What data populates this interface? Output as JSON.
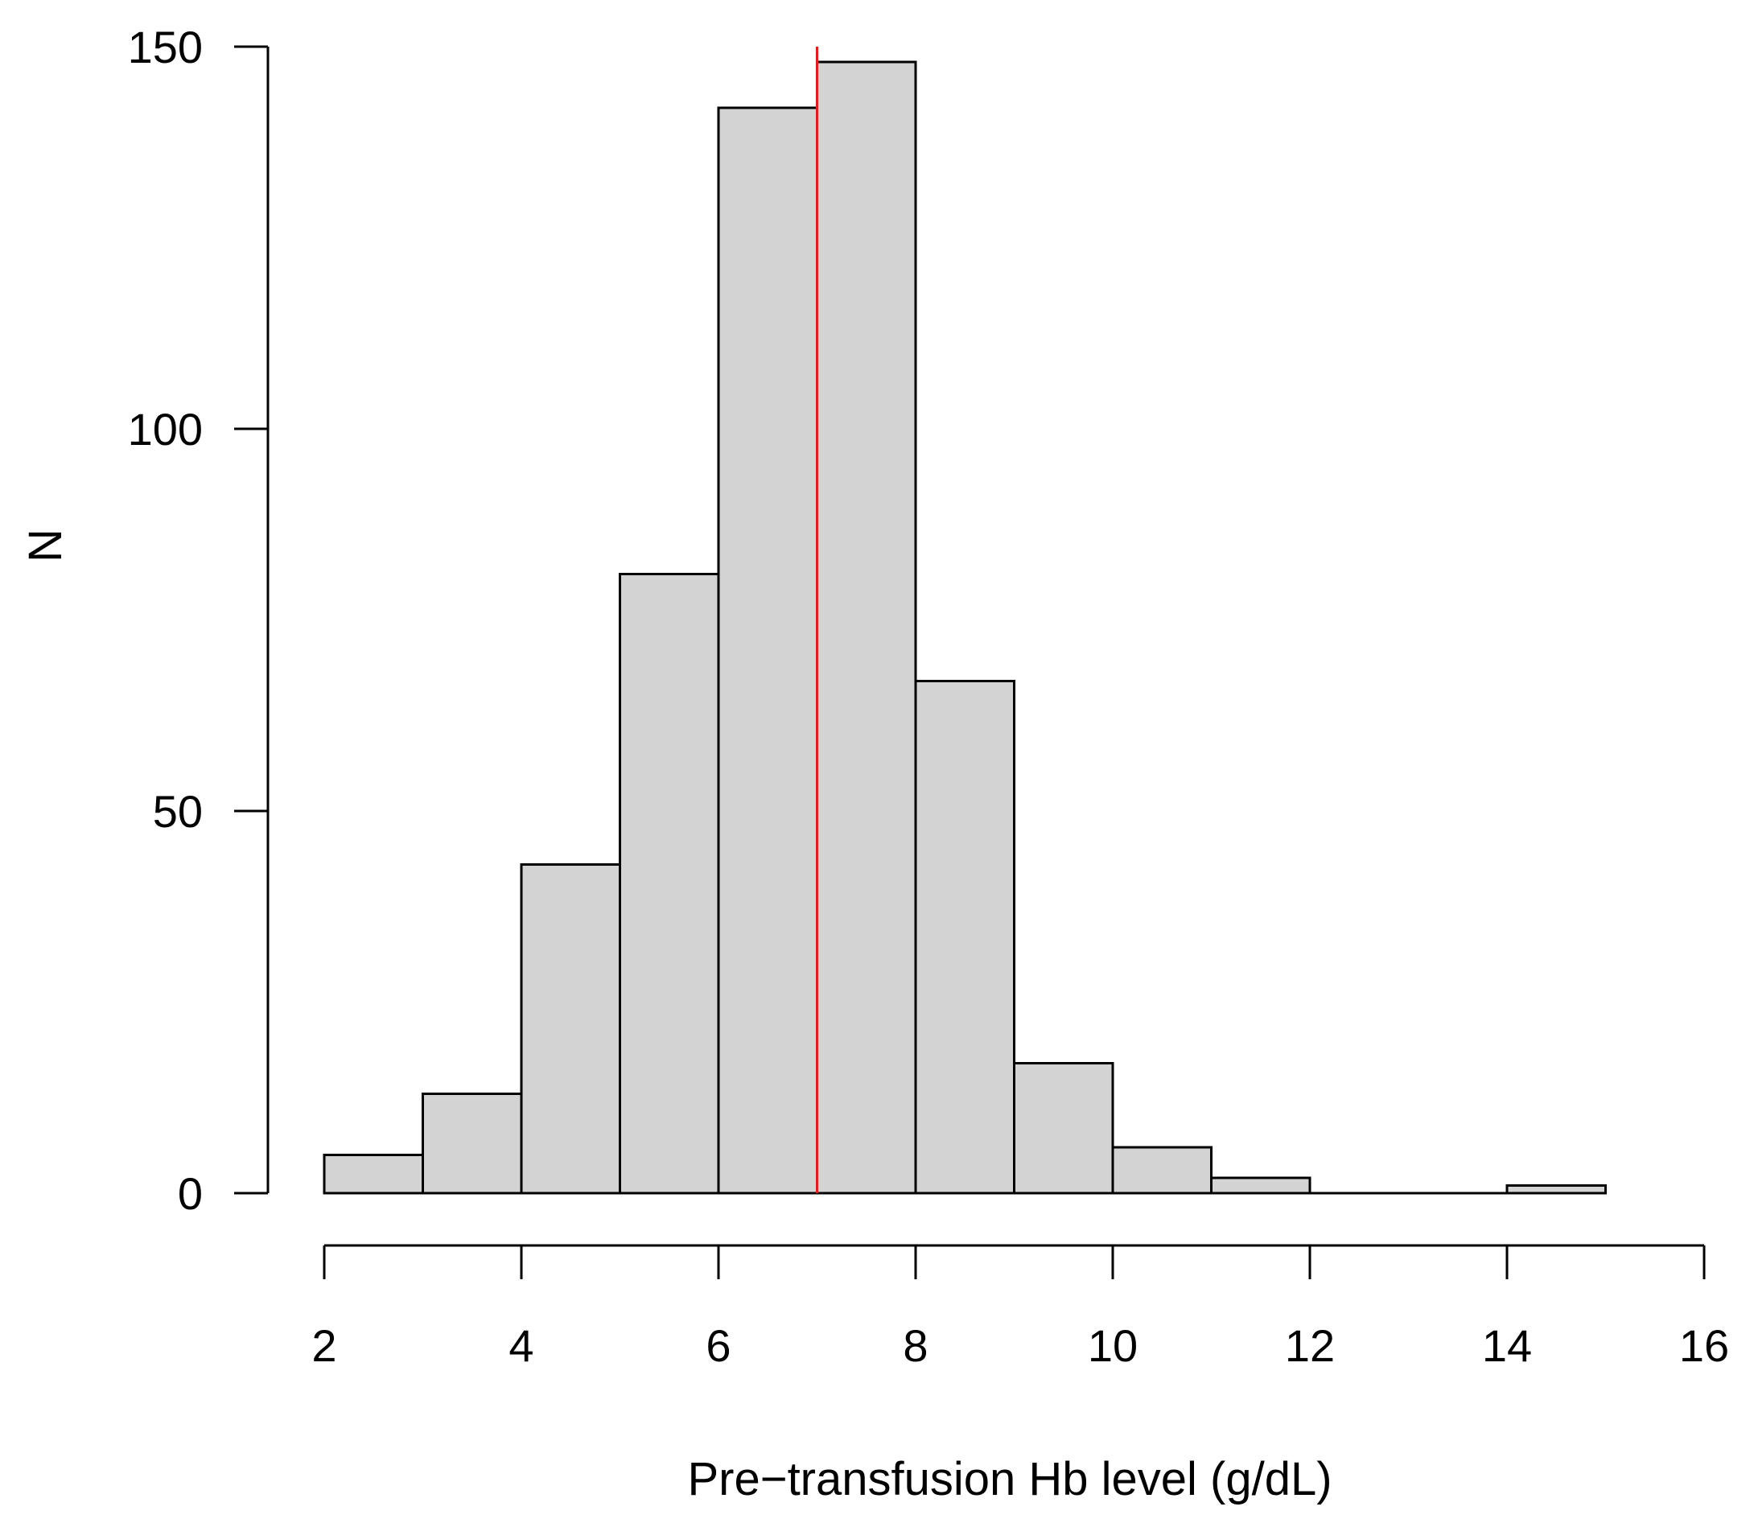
{
  "chart_data": {
    "type": "bar",
    "title": "",
    "xlabel": "Pre−transfusion Hb level (g/dL)",
    "ylabel": "N",
    "xlim": [
      2,
      16
    ],
    "ylim": [
      0,
      150
    ],
    "x_ticks": [
      "2",
      "4",
      "6",
      "8",
      "10",
      "12",
      "14",
      "16"
    ],
    "y_ticks": [
      "0",
      "50",
      "100",
      "150"
    ],
    "bins": [
      {
        "start": 2,
        "end": 3,
        "count": 5
      },
      {
        "start": 3,
        "end": 4,
        "count": 13
      },
      {
        "start": 4,
        "end": 5,
        "count": 43
      },
      {
        "start": 5,
        "end": 6,
        "count": 81
      },
      {
        "start": 6,
        "end": 7,
        "count": 142
      },
      {
        "start": 7,
        "end": 8,
        "count": 148
      },
      {
        "start": 8,
        "end": 9,
        "count": 67
      },
      {
        "start": 9,
        "end": 10,
        "count": 17
      },
      {
        "start": 10,
        "end": 11,
        "count": 6
      },
      {
        "start": 11,
        "end": 12,
        "count": 2
      },
      {
        "start": 12,
        "end": 13,
        "count": 0
      },
      {
        "start": 13,
        "end": 14,
        "count": 0
      },
      {
        "start": 14,
        "end": 15,
        "count": 1
      }
    ],
    "reference_line": {
      "x": 7,
      "color": "#e41a1c"
    },
    "bar_fill": "#d3d3d3",
    "bar_stroke": "#000000",
    "grid": false,
    "legend": "none"
  }
}
